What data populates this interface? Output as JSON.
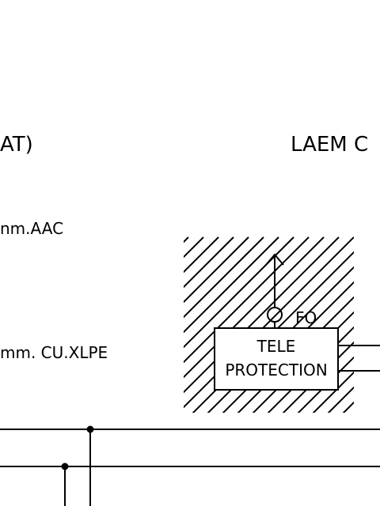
{
  "labels": {
    "left_title_fragment": "AT)",
    "right_title_fragment": "LAEM C",
    "conductor_top": "nm.AAC",
    "conductor_bottom": "mm. CU.XLPE",
    "fo_label": "FO",
    "tele_line1": "TELE",
    "tele_line2": "PROTECTION"
  },
  "colors": {
    "ink": "#000000",
    "background": "#ffffff"
  }
}
